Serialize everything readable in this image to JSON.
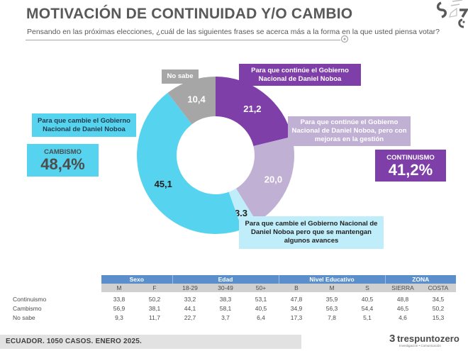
{
  "header": {
    "title": "MOTIVACIÓN DE CONTINUIDAD Y/O CAMBIO",
    "subtitle": "Pensando en las próximas elecciones, ¿cuál de las siguientes frases se acerca más a la forma en la que usted piensa votar?",
    "logo_icon": "tres-puntos-zero-emblem-icon"
  },
  "labels": {
    "no_sabe": "No sabe",
    "continue": "Para que continúe el Gobierno Nacional de Daniel Noboa",
    "continue_improve": "Para que continúe el Gobierno Nacional de Daniel Noboa, pero con mejoras en la gestión",
    "change": "Para que cambie el Gobierno Nacional de Daniel Noboa",
    "change_keep": "Para que cambie el Gobierno Nacional de Daniel Noboa pero que se mantengan algunos avances"
  },
  "summaries": {
    "cambismo": {
      "title": "CAMBISMO",
      "value": "48,4%"
    },
    "continuismo": {
      "title": "CONTINUISMO",
      "value": "41,2%"
    }
  },
  "chart_data": {
    "type": "pie",
    "subtype": "donut",
    "title": "MOTIVACIÓN DE CONTINUIDAD Y/O CAMBIO",
    "start": "top",
    "direction": "clockwise",
    "slices": [
      {
        "key": "continue",
        "label": "Para que continúe el Gobierno Nacional de Daniel Noboa",
        "value": 21.2,
        "display": "21,2",
        "color": "#7f3fa8",
        "text_color": "#ffffff"
      },
      {
        "key": "continue_improve",
        "label": "Para que continúe el Gobierno Nacional de Daniel Noboa, pero con mejoras en la gestión",
        "value": 20.0,
        "display": "20,0",
        "color": "#c0b1d4",
        "text_color": "#ffffff"
      },
      {
        "key": "change_keep",
        "label": "Para que cambie el Gobierno Nacional de Daniel Noboa pero que se mantengan algunos avances",
        "value": 3.3,
        "display": "3,3",
        "color": "#bfeefa",
        "text_color": "#1f1f1f"
      },
      {
        "key": "change",
        "label": "Para que cambie el Gobierno Nacional de Daniel Noboa",
        "value": 45.1,
        "display": "45,1",
        "color": "#56d3ef",
        "text_color": "#1f1f1f"
      },
      {
        "key": "no_sabe",
        "label": "No sabe",
        "value": 10.4,
        "display": "10,4",
        "color": "#a6a6a6",
        "text_color": "#ffffff"
      }
    ],
    "groups": [
      {
        "name": "CAMBISMO",
        "value": 48.4
      },
      {
        "name": "CONTINUISMO",
        "value": 41.2
      }
    ]
  },
  "table": {
    "groups": [
      {
        "label": "Sexo",
        "span": 2
      },
      {
        "label": "Edad",
        "span": 3
      },
      {
        "label": "Nivel Educativo",
        "span": 3
      },
      {
        "label": "ZONA",
        "span": 2
      }
    ],
    "columns": [
      "M",
      "F",
      "18-29",
      "30-49",
      "50+",
      "B",
      "M",
      "S",
      "SIERRA",
      "COSTA"
    ],
    "rows": [
      {
        "label": "Continuismo",
        "values": [
          "33,8",
          "50,2",
          "33,2",
          "38,3",
          "53,1",
          "47,8",
          "35,9",
          "40,5",
          "48,8",
          "34,5"
        ]
      },
      {
        "label": "Cambismo",
        "values": [
          "56,9",
          "38,1",
          "44,1",
          "58,1",
          "40,5",
          "34,9",
          "56,3",
          "54,4",
          "46,5",
          "50,2"
        ]
      },
      {
        "label": "No sabe",
        "values": [
          "9,3",
          "11,7",
          "22,7",
          "3,7",
          "6,4",
          "17,3",
          "7,8",
          "5,1",
          "4,6",
          "15,3"
        ]
      }
    ],
    "header_color": "#5b8fcb",
    "subheader_color": "#d0d0d0"
  },
  "footer": {
    "note": "ECUADOR. 1050 CASOS. ENERO 2025.",
    "brand_mark": "3",
    "brand_name": "trespuntozero",
    "brand_tagline": "Investigación • Comunicación"
  }
}
